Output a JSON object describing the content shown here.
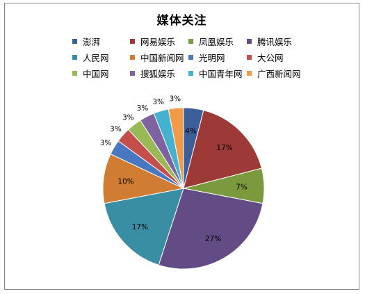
{
  "chart_data": {
    "type": "pie",
    "title": "媒体关注",
    "legend_position": "top",
    "categories": [
      "澎湃",
      "网易娱乐",
      "凤凰娱乐",
      "腾讯娱乐",
      "人民网",
      "中国新闻网",
      "光明网",
      "大公网",
      "中国网",
      "搜狐娱乐",
      "中国青年网",
      "广西新闻网"
    ],
    "values": [
      4,
      17,
      7,
      27,
      17,
      10,
      3,
      3,
      3,
      3,
      3,
      3
    ],
    "labels": [
      "4%",
      "17%",
      "7%",
      "27%",
      "17%",
      "10%",
      "3%",
      "3%",
      "3%",
      "3%",
      "3%",
      "3%"
    ],
    "colors": [
      "#3c5f9a",
      "#9d3a38",
      "#7a9a3d",
      "#634b86",
      "#3a8ea3",
      "#d07c32",
      "#4a78c0",
      "#c34e4c",
      "#98b956",
      "#7e63a2",
      "#44b2cf",
      "#f19a47"
    ]
  }
}
